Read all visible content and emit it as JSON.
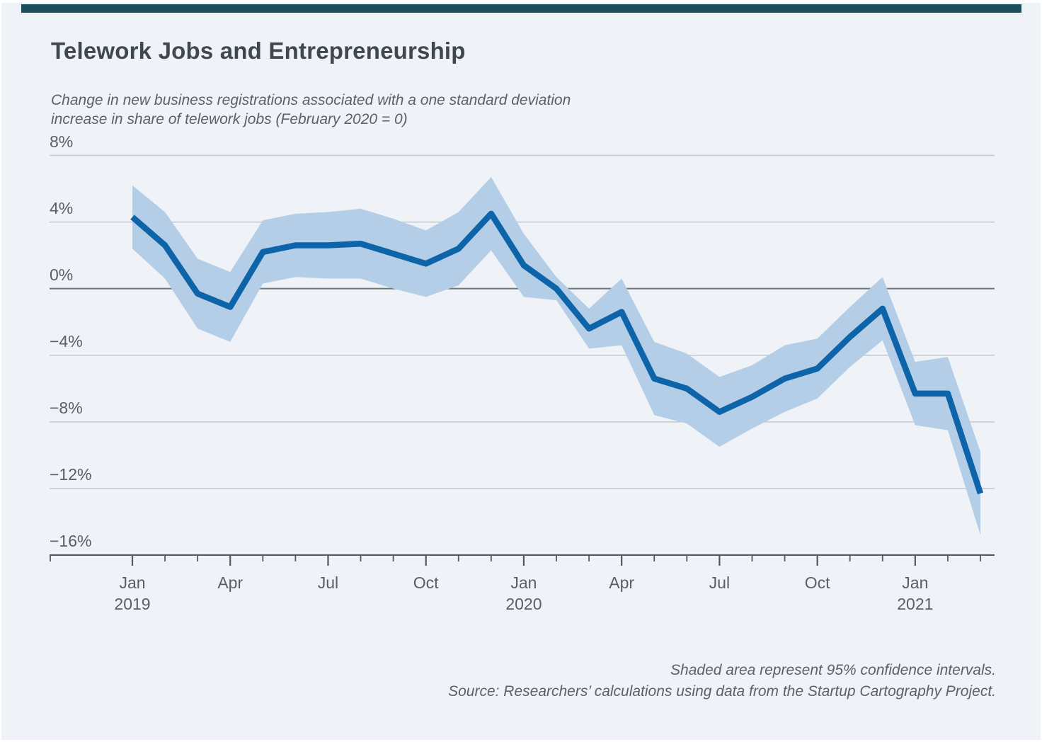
{
  "page": {
    "background_color": "#eff3f7",
    "accent_bar_color": "#1b4f5e"
  },
  "header": {
    "title": "Telework Jobs and Entrepreneurship",
    "subtitle_line1": "Change in new business registrations associated with a one standard deviation",
    "subtitle_line2": "increase in share of telework jobs (February 2020 = 0)"
  },
  "footer": {
    "note": "Shaded area represent 95% confidence intervals.",
    "source": "Source: Researchers’ calculations using data from the Startup Cartography Project."
  },
  "chart_data": {
    "type": "line",
    "title": "Telework Jobs and Entrepreneurship",
    "subtitle": "Change in new business registrations associated with a one standard deviation increase in share of telework jobs (February 2020 = 0)",
    "xlabel": "",
    "ylabel": "",
    "x": [
      "Jan 2019",
      "Feb 2019",
      "Mar 2019",
      "Apr 2019",
      "May 2019",
      "Jun 2019",
      "Jul 2019",
      "Aug 2019",
      "Sep 2019",
      "Oct 2019",
      "Nov 2019",
      "Dec 2019",
      "Jan 2020",
      "Feb 2020",
      "Mar 2020",
      "Apr 2020",
      "May 2020",
      "Jun 2020",
      "Jul 2020",
      "Aug 2020",
      "Sep 2020",
      "Oct 2020",
      "Nov 2020",
      "Dec 2020",
      "Jan 2021",
      "Feb 2021",
      "Mar 2021"
    ],
    "series": [
      {
        "name": "Estimated change in new business registrations (%)",
        "values": [
          4.3,
          2.6,
          -0.3,
          -1.1,
          2.2,
          2.6,
          2.6,
          2.7,
          2.1,
          1.5,
          2.4,
          4.5,
          1.4,
          0.0,
          -2.4,
          -1.4,
          -5.4,
          -6.0,
          -7.4,
          -6.5,
          -5.4,
          -4.8,
          -2.9,
          -1.2,
          -6.3,
          -6.3,
          -12.3
        ]
      },
      {
        "name": "95% confidence interval upper bound (%)",
        "values": [
          6.2,
          4.6,
          1.8,
          1.0,
          4.1,
          4.5,
          4.6,
          4.8,
          4.2,
          3.5,
          4.6,
          6.7,
          3.3,
          0.7,
          -1.2,
          0.6,
          -3.2,
          -3.9,
          -5.3,
          -4.6,
          -3.4,
          -3.0,
          -1.1,
          0.7,
          -4.4,
          -4.1,
          -9.8
        ]
      },
      {
        "name": "95% confidence interval lower bound (%)",
        "values": [
          2.4,
          0.6,
          -2.4,
          -3.2,
          0.3,
          0.7,
          0.6,
          0.6,
          0.0,
          -0.5,
          0.2,
          2.3,
          -0.5,
          -0.7,
          -3.6,
          -3.4,
          -7.6,
          -8.1,
          -9.5,
          -8.4,
          -7.4,
          -6.6,
          -4.7,
          -3.1,
          -8.2,
          -8.5,
          -14.8
        ]
      }
    ],
    "ylim": [
      -16,
      8
    ],
    "yticks": [
      {
        "value": 8,
        "label": "8%"
      },
      {
        "value": 4,
        "label": "4%"
      },
      {
        "value": 0,
        "label": "0%"
      },
      {
        "value": -4,
        "label": "−4%"
      },
      {
        "value": -8,
        "label": "−8%"
      },
      {
        "value": -12,
        "label": "−12%"
      },
      {
        "value": -16,
        "label": "−16%"
      }
    ],
    "xticks": [
      {
        "index": 0,
        "month": "Jan",
        "year": "2019"
      },
      {
        "index": 3,
        "month": "Apr",
        "year": ""
      },
      {
        "index": 6,
        "month": "Jul",
        "year": ""
      },
      {
        "index": 9,
        "month": "Oct",
        "year": ""
      },
      {
        "index": 12,
        "month": "Jan",
        "year": "2020"
      },
      {
        "index": 15,
        "month": "Apr",
        "year": ""
      },
      {
        "index": 18,
        "month": "Jul",
        "year": ""
      },
      {
        "index": 21,
        "month": "Oct",
        "year": ""
      },
      {
        "index": 24,
        "month": "Jan",
        "year": "2021"
      }
    ],
    "grid": true,
    "legend_position": "none",
    "annotations": [
      "Shaded area represent 95% confidence intervals."
    ],
    "colors": {
      "line": "#0e64a8",
      "band": "#b5cee7",
      "grid": "#c3c8cd",
      "zero_line": "#6e7478",
      "axis": "#53585e"
    }
  }
}
